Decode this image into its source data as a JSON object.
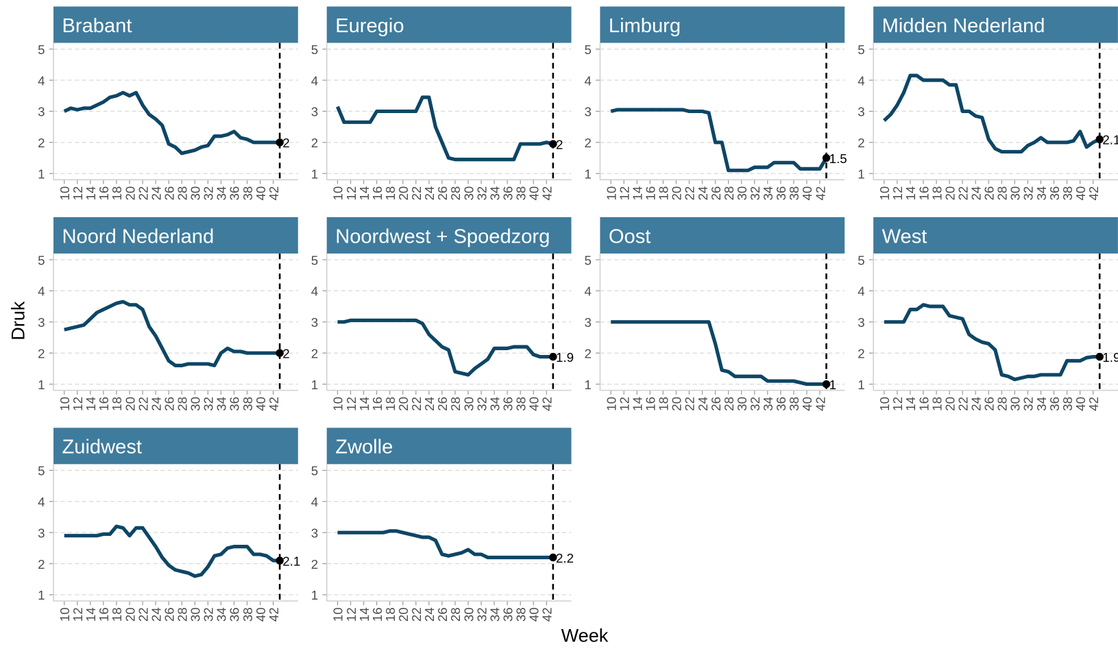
{
  "chart_data": {
    "type": "line",
    "xlabel": "Week",
    "ylabel": "Druk",
    "color": "#0d4666",
    "x": [
      10,
      11,
      12,
      13,
      14,
      15,
      16,
      17,
      18,
      19,
      20,
      21,
      22,
      23,
      24,
      25,
      26,
      27,
      28,
      29,
      30,
      31,
      32,
      33,
      34,
      35,
      36,
      37,
      38,
      39,
      40,
      41,
      42,
      43
    ],
    "xlim": [
      8.35,
      45.8
    ],
    "ylim": [
      0.8,
      5.2
    ],
    "xticks": [
      10,
      12,
      14,
      16,
      18,
      20,
      22,
      24,
      26,
      28,
      30,
      32,
      34,
      36,
      38,
      40,
      42
    ],
    "yticks": [
      1,
      2,
      3,
      4,
      5
    ],
    "grid": true,
    "vline": 43,
    "panels": [
      {
        "title": "Brabant",
        "end_label": "2",
        "values": [
          3.0,
          3.1,
          3.05,
          3.1,
          3.1,
          3.2,
          3.3,
          3.45,
          3.5,
          3.6,
          3.5,
          3.6,
          3.2,
          2.9,
          2.75,
          2.55,
          1.95,
          1.85,
          1.65,
          1.7,
          1.75,
          1.85,
          1.9,
          2.2,
          2.2,
          2.25,
          2.35,
          2.15,
          2.1,
          2.0,
          2.0,
          2.0,
          2.0,
          2.0
        ]
      },
      {
        "title": "Euregio",
        "end_label": "2",
        "values": [
          3.15,
          2.65,
          2.65,
          2.65,
          2.65,
          2.65,
          3.0,
          3.0,
          3.0,
          3.0,
          3.0,
          3.0,
          3.0,
          3.45,
          3.45,
          2.5,
          2.0,
          1.5,
          1.45,
          1.45,
          1.45,
          1.45,
          1.45,
          1.45,
          1.45,
          1.45,
          1.45,
          1.45,
          1.95,
          1.95,
          1.95,
          1.95,
          2.0,
          1.95
        ]
      },
      {
        "title": "Limburg",
        "end_label": "1.5",
        "values": [
          3.0,
          3.05,
          3.05,
          3.05,
          3.05,
          3.05,
          3.05,
          3.05,
          3.05,
          3.05,
          3.05,
          3.05,
          3.0,
          3.0,
          3.0,
          2.95,
          2.0,
          2.0,
          1.1,
          1.1,
          1.1,
          1.1,
          1.2,
          1.2,
          1.2,
          1.35,
          1.35,
          1.35,
          1.35,
          1.15,
          1.15,
          1.15,
          1.15,
          1.5
        ]
      },
      {
        "title": "Midden Nederland",
        "end_label": "2.1",
        "values": [
          2.7,
          2.9,
          3.2,
          3.6,
          4.15,
          4.15,
          4.0,
          4.0,
          4.0,
          4.0,
          3.85,
          3.85,
          3.0,
          3.0,
          2.85,
          2.8,
          2.1,
          1.8,
          1.7,
          1.7,
          1.7,
          1.7,
          1.9,
          2.0,
          2.15,
          2.0,
          2.0,
          2.0,
          2.0,
          2.05,
          2.35,
          1.85,
          2.0,
          2.1
        ]
      },
      {
        "title": "Noord Nederland",
        "end_label": "2",
        "values": [
          2.75,
          2.8,
          2.85,
          2.9,
          3.1,
          3.3,
          3.4,
          3.5,
          3.6,
          3.65,
          3.55,
          3.55,
          3.4,
          2.85,
          2.55,
          2.15,
          1.75,
          1.6,
          1.6,
          1.65,
          1.65,
          1.65,
          1.65,
          1.6,
          2.0,
          2.15,
          2.05,
          2.05,
          2.0,
          2.0,
          2.0,
          2.0,
          2.0,
          2.0
        ]
      },
      {
        "title": "Noordwest + Spoedzorg",
        "end_label": "1.9",
        "values": [
          3.0,
          3.0,
          3.05,
          3.05,
          3.05,
          3.05,
          3.05,
          3.05,
          3.05,
          3.05,
          3.05,
          3.05,
          3.05,
          2.95,
          2.6,
          2.4,
          2.2,
          2.1,
          1.4,
          1.35,
          1.3,
          1.5,
          1.65,
          1.8,
          2.15,
          2.15,
          2.15,
          2.2,
          2.2,
          2.2,
          1.95,
          1.88,
          1.88,
          1.88
        ]
      },
      {
        "title": "Oost",
        "end_label": "1",
        "values": [
          3.0,
          3.0,
          3.0,
          3.0,
          3.0,
          3.0,
          3.0,
          3.0,
          3.0,
          3.0,
          3.0,
          3.0,
          3.0,
          3.0,
          3.0,
          3.0,
          2.3,
          1.45,
          1.4,
          1.25,
          1.25,
          1.25,
          1.25,
          1.25,
          1.1,
          1.1,
          1.1,
          1.1,
          1.1,
          1.05,
          1.0,
          1.0,
          1.0,
          1.0
        ]
      },
      {
        "title": "West",
        "end_label": "1.9",
        "values": [
          3.0,
          3.0,
          3.0,
          3.0,
          3.4,
          3.4,
          3.55,
          3.5,
          3.5,
          3.5,
          3.2,
          3.15,
          3.1,
          2.6,
          2.45,
          2.35,
          2.3,
          2.1,
          1.3,
          1.25,
          1.15,
          1.2,
          1.25,
          1.25,
          1.3,
          1.3,
          1.3,
          1.3,
          1.75,
          1.75,
          1.75,
          1.85,
          1.88,
          1.88
        ]
      },
      {
        "title": "Zuidwest",
        "end_label": "2.1",
        "values": [
          2.9,
          2.9,
          2.9,
          2.9,
          2.9,
          2.9,
          2.95,
          2.95,
          3.2,
          3.15,
          2.9,
          3.15,
          3.15,
          2.85,
          2.55,
          2.2,
          1.95,
          1.8,
          1.75,
          1.7,
          1.6,
          1.65,
          1.9,
          2.25,
          2.3,
          2.5,
          2.55,
          2.55,
          2.55,
          2.3,
          2.3,
          2.25,
          2.1,
          2.1
        ]
      },
      {
        "title": "Zwolle",
        "end_label": "2.2",
        "values": [
          3.0,
          3.0,
          3.0,
          3.0,
          3.0,
          3.0,
          3.0,
          3.0,
          3.05,
          3.05,
          3.0,
          2.95,
          2.9,
          2.85,
          2.85,
          2.75,
          2.3,
          2.25,
          2.3,
          2.35,
          2.45,
          2.3,
          2.3,
          2.2,
          2.2,
          2.2,
          2.2,
          2.2,
          2.2,
          2.2,
          2.2,
          2.2,
          2.2,
          2.2
        ]
      }
    ]
  }
}
